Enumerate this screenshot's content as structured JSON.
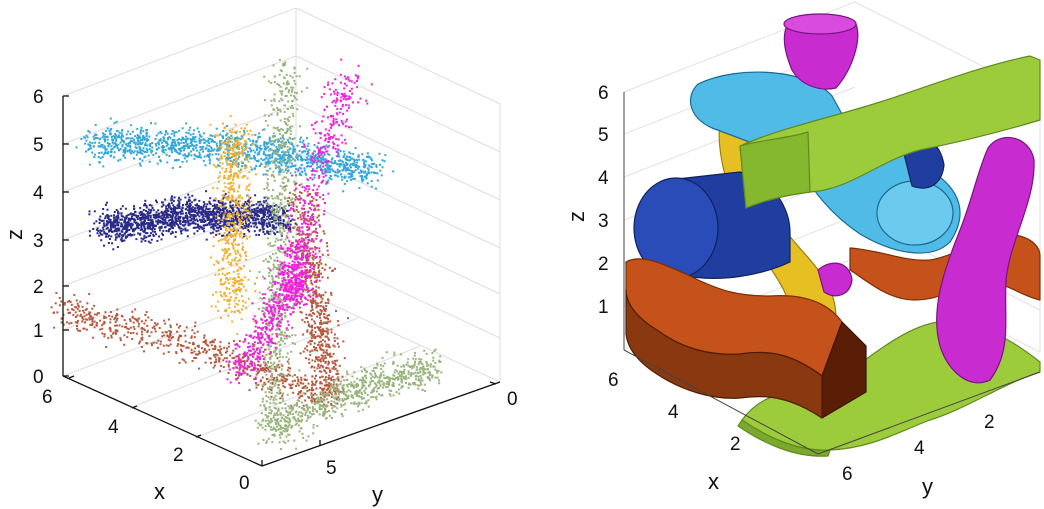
{
  "colors": {
    "magenta": "#ee22dd",
    "sage": "#99b57c",
    "cyan": "#33a8d8",
    "gold": "#f0b030",
    "navy": "#2a2a88",
    "brick": "#b55a40",
    "lime": "#9ccc3c",
    "gold_solid": "#e6bf22",
    "blue_solid": "#1f3ea0",
    "cyan_solid": "#4fbbe6",
    "orange_solid": "#c4521a",
    "magenta_solid": "#c82bd0"
  },
  "chart_data": [
    {
      "type": "scatter",
      "dimensions": 3,
      "xlabel": "x",
      "ylabel": "y",
      "zlabel": "z",
      "xticks": [
        "0",
        "2",
        "4",
        "6"
      ],
      "yticks": [
        "0",
        "5"
      ],
      "zticks": [
        "0",
        "1",
        "2",
        "3",
        "4",
        "5",
        "6"
      ],
      "xlim": [
        0,
        6.5
      ],
      "ylim": [
        0,
        7
      ],
      "zlim": [
        0,
        6.5
      ],
      "grid": true,
      "series": [
        {
          "color_key": "brick",
          "count": 1300,
          "ends": [
            [
              6,
              0,
              1.5
            ],
            [
              0,
              2,
              1.0
            ],
            [
              6,
              7,
              2.4
            ]
          ]
        },
        {
          "color_key": "navy",
          "count": 1500,
          "ends": [
            [
              6,
              1.2,
              3.1
            ],
            [
              3.6,
              4.2,
              3.3
            ]
          ]
        },
        {
          "color_key": "cyan",
          "count": 1300,
          "ends": [
            [
              6,
              0.8,
              5.2
            ],
            [
              3.2,
              6.5,
              3.9
            ]
          ]
        },
        {
          "color_key": "sage",
          "count": 1400,
          "ends": [
            [
              0,
              5,
              0.9
            ],
            [
              0,
              0.3,
              0.7
            ],
            [
              6,
              6.5,
              5.4
            ]
          ]
        },
        {
          "color_key": "gold",
          "count": 550,
          "ends": [
            [
              4.4,
              3.5,
              5.3
            ],
            [
              4.5,
              3.5,
              1.0
            ]
          ]
        },
        {
          "color_key": "magenta",
          "count": 1000,
          "ends": [
            [
              3.8,
              6.3,
              6.0
            ],
            [
              3.6,
              4.6,
              2.6
            ],
            [
              0.5,
              1.4,
              3.6
            ],
            [
              1.5,
              0.9,
              1.3
            ]
          ]
        }
      ]
    },
    {
      "type": "surface",
      "dimensions": 3,
      "xlabel": "x",
      "ylabel": "y",
      "zlabel": "z",
      "xticks": [
        "2",
        "4",
        "6"
      ],
      "yticks": [
        "2",
        "4",
        "6"
      ],
      "zticks": [
        "1",
        "2",
        "3",
        "4",
        "5",
        "6"
      ],
      "grid": true,
      "objects": [
        {
          "color_key": "lime",
          "shape": "wavy slab"
        },
        {
          "color_key": "lime",
          "shape": "wavy slab"
        },
        {
          "color_key": "gold_solid",
          "shape": "twisted tube"
        },
        {
          "color_key": "blue_solid",
          "shape": "cylinder"
        },
        {
          "color_key": "cyan_solid",
          "shape": "curved tube"
        },
        {
          "color_key": "orange_solid",
          "shape": "wavy slab"
        },
        {
          "color_key": "orange_solid",
          "shape": "wavy slab"
        },
        {
          "color_key": "magenta_solid",
          "shape": "tube"
        },
        {
          "color_key": "magenta_solid",
          "shape": "tube"
        }
      ]
    }
  ]
}
